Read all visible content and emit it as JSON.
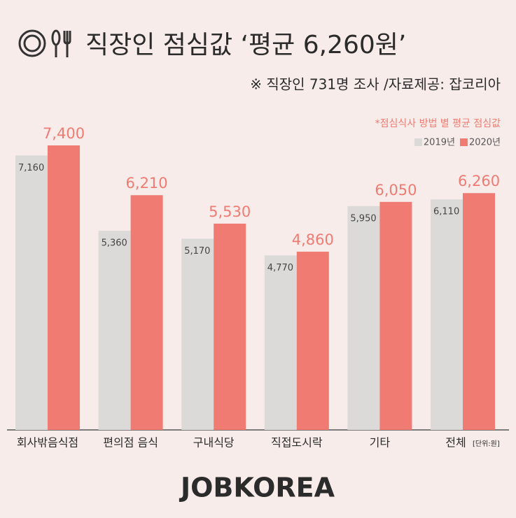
{
  "chart_data": {
    "type": "bar",
    "title": "직장인 점심값 ‘평균 6,260원’",
    "subtitle": "※ 직장인 731명 조사 /자료제공: 잡코리아",
    "note": "*점심식사 방법 별 평균 점심값",
    "unit_label": "[단위:원]",
    "footer": "JOBKOREA",
    "categories": [
      "회사밖음식점",
      "편의점 음식",
      "구내식당",
      "직접도시락",
      "기타",
      "전체"
    ],
    "series": [
      {
        "name": "2019년",
        "color": "#dcdad9",
        "values": [
          7160,
          5360,
          5170,
          4770,
          5950,
          6110
        ],
        "value_labels": [
          "7,160",
          "5,360",
          "5,170",
          "4,770",
          "5,950",
          "6,110"
        ]
      },
      {
        "name": "2020년",
        "color": "#ef7b72",
        "values": [
          7400,
          6210,
          5530,
          4860,
          6050,
          6260
        ],
        "value_labels": [
          "7,400",
          "6,210",
          "5,530",
          "4,860",
          "6,050",
          "6,260"
        ]
      }
    ],
    "ylim": [
      600,
      7400
    ]
  }
}
